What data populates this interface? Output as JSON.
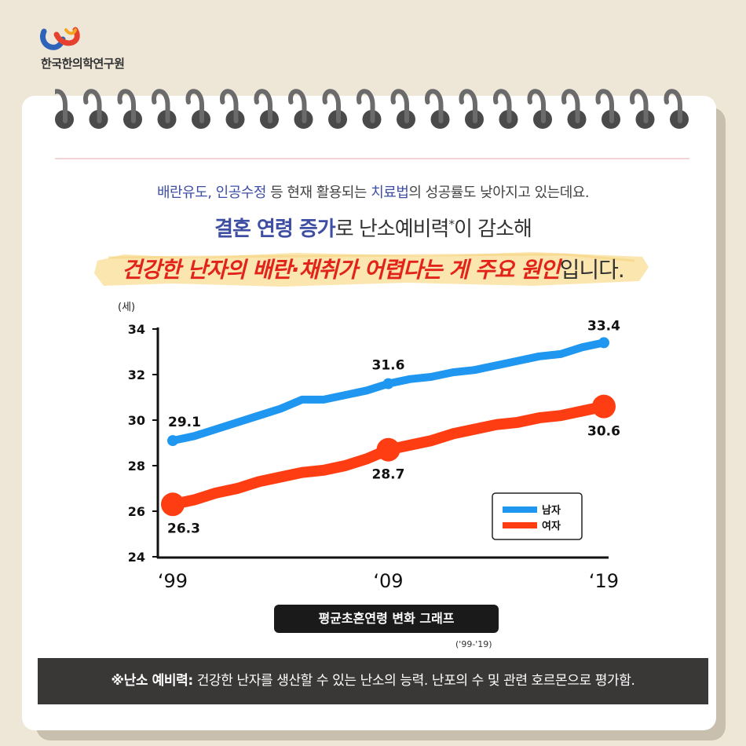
{
  "header": {
    "org_name": "한국한의학연구원"
  },
  "headline": {
    "line1_hl1": "배란유도",
    "line1_sep": ", ",
    "line1_hl2": "인공수정",
    "line1_mid": " 등 현재 활용되는 ",
    "line1_hl3": "치료법",
    "line1_tail": "의 성공률도 낮아지고 있는데요.",
    "line2_hl": "결혼 연령 증가",
    "line2_mid": "로 난소예비력",
    "line2_star": "*",
    "line2_tail": "이 감소해",
    "line3_hl": "건강한 난자의 배란·채취가 어렵다는 게 주요 원인",
    "line3_tail": "입니다."
  },
  "chart_caption": "평균초혼연령 변화 그래프",
  "chart_caption_range": "('99-'19)",
  "footnote": {
    "term": "※난소 예비력:",
    "text": " 건강한 난자를 생산할 수 있는 난소의 능력. 난포의 수 및 관련 호르몬으로 평가함."
  },
  "colors": {
    "male": "#1f97f0",
    "female": "#ff3d12",
    "accent_blue": "#3d4ea3",
    "accent_red": "#e2231a"
  },
  "chart_data": {
    "type": "line",
    "ylabel": "(세)",
    "ylim": [
      24,
      34
    ],
    "yticks": [
      24,
      26,
      28,
      30,
      32,
      34
    ],
    "x": [
      1999,
      2000,
      2001,
      2002,
      2003,
      2004,
      2005,
      2006,
      2007,
      2008,
      2009,
      2010,
      2011,
      2012,
      2013,
      2014,
      2015,
      2016,
      2017,
      2018,
      2019
    ],
    "xticks": [
      {
        "x": 1999,
        "label": "‘99"
      },
      {
        "x": 2009,
        "label": "‘09"
      },
      {
        "x": 2019,
        "label": "‘19"
      }
    ],
    "series": [
      {
        "name": "남자",
        "values": [
          29.1,
          29.3,
          29.6,
          29.9,
          30.2,
          30.5,
          30.9,
          30.9,
          31.1,
          31.3,
          31.6,
          31.8,
          31.9,
          32.1,
          32.2,
          32.4,
          32.6,
          32.8,
          32.9,
          33.2,
          33.4
        ],
        "labels": [
          {
            "x": 1999,
            "text": "29.1"
          },
          {
            "x": 2009,
            "text": "31.6"
          },
          {
            "x": 2019,
            "text": "33.4"
          }
        ]
      },
      {
        "name": "여자",
        "values": [
          26.3,
          26.5,
          26.8,
          27.0,
          27.3,
          27.5,
          27.7,
          27.8,
          28.0,
          28.3,
          28.7,
          28.9,
          29.1,
          29.4,
          29.6,
          29.8,
          29.9,
          30.1,
          30.2,
          30.4,
          30.6
        ],
        "labels": [
          {
            "x": 1999,
            "text": "26.3"
          },
          {
            "x": 2009,
            "text": "28.7"
          },
          {
            "x": 2019,
            "text": "30.6"
          }
        ]
      }
    ],
    "legend": {
      "placement": "bottom-right"
    }
  }
}
